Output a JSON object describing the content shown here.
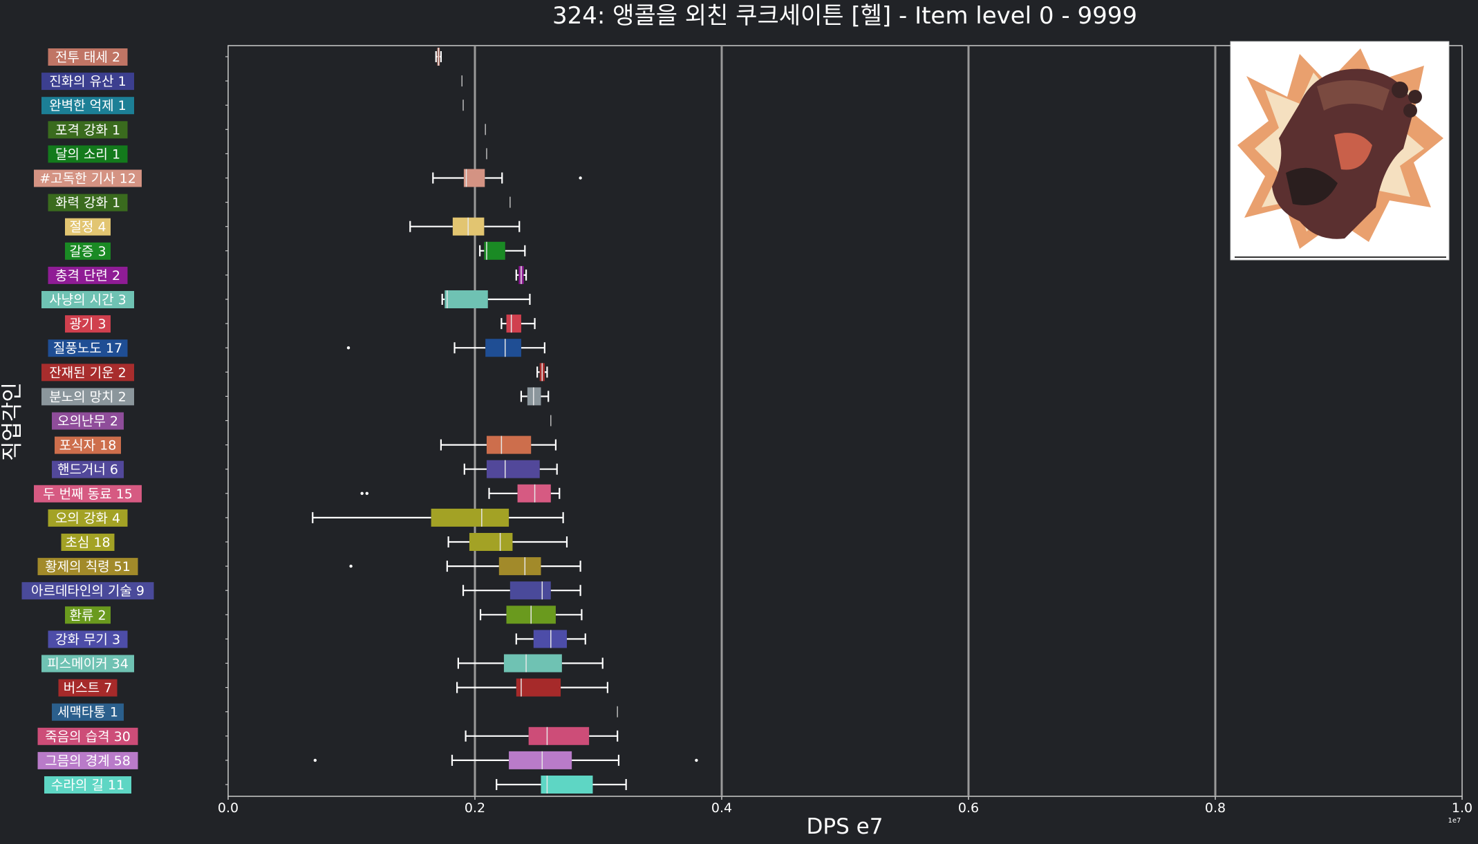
{
  "chart_data": {
    "type": "box",
    "orientation": "horizontal",
    "title": "324: 앵콜을 외친 쿠크세이튼 [헬] - Item level 0 - 9999",
    "xlabel": "DPS e7",
    "ylabel": "직업각인",
    "x_offset_label": "1e7",
    "xlim": [
      0.0,
      1.0
    ],
    "xticks": [
      "0.0",
      "0.2",
      "0.4",
      "0.6",
      "0.8",
      "1.0"
    ],
    "vertical_gridlines_at": [
      0.2,
      0.4,
      0.6,
      0.8
    ],
    "image_inset": "character-portrait",
    "categories": [
      {
        "label": "전투 태세 2",
        "color": "#c07565",
        "whislo": 0.1685,
        "q1": 0.1695,
        "med": 0.1705,
        "q3": 0.1715,
        "whishi": 0.1725,
        "fliers": []
      },
      {
        "label": "진화의 유산 1",
        "color": "#3c3f8f",
        "whislo": 0.1895,
        "q1": 0.1895,
        "med": 0.1895,
        "q3": 0.1895,
        "whishi": 0.1895,
        "fliers": []
      },
      {
        "label": "완벽한 억제 1",
        "color": "#1c7f96",
        "whislo": 0.1905,
        "q1": 0.1905,
        "med": 0.1905,
        "q3": 0.1905,
        "whishi": 0.1905,
        "fliers": []
      },
      {
        "label": "포격 강화 1",
        "color": "#3a6b1e",
        "whislo": 0.2085,
        "q1": 0.2085,
        "med": 0.2085,
        "q3": 0.2085,
        "whishi": 0.2085,
        "fliers": []
      },
      {
        "label": "달의 소리 1",
        "color": "#137a1c",
        "whislo": 0.2095,
        "q1": 0.2095,
        "med": 0.2095,
        "q3": 0.2095,
        "whishi": 0.2095,
        "fliers": []
      },
      {
        "label": "#고독한 기사 12",
        "color": "#d49383",
        "whislo": 0.166,
        "q1": 0.191,
        "med": 0.193,
        "q3": 0.208,
        "whishi": 0.222,
        "fliers": [
          0.2855
        ]
      },
      {
        "label": "화력 강화 1",
        "color": "#3a6b1e",
        "whislo": 0.2285,
        "q1": 0.2285,
        "med": 0.2285,
        "q3": 0.2285,
        "whishi": 0.2285,
        "fliers": []
      },
      {
        "label": "절정 4",
        "color": "#e2c571",
        "whislo": 0.1475,
        "q1": 0.182,
        "med": 0.1945,
        "q3": 0.2075,
        "whishi": 0.236,
        "fliers": []
      },
      {
        "label": "갈증 3",
        "color": "#1a8a24",
        "whislo": 0.204,
        "q1": 0.2075,
        "med": 0.2095,
        "q3": 0.2245,
        "whishi": 0.2405,
        "fliers": []
      },
      {
        "label": "충격 단련 2",
        "color": "#8f1c95",
        "whislo": 0.2335,
        "q1": 0.2355,
        "med": 0.2375,
        "q3": 0.2395,
        "whishi": 0.2415,
        "fliers": []
      },
      {
        "label": "사냥의 시간 3",
        "color": "#6fc2b3",
        "whislo": 0.1735,
        "q1": 0.1755,
        "med": 0.1775,
        "q3": 0.2105,
        "whishi": 0.2445,
        "fliers": []
      },
      {
        "label": "광기 3",
        "color": "#d0404e",
        "whislo": 0.2215,
        "q1": 0.2255,
        "med": 0.2295,
        "q3": 0.2375,
        "whishi": 0.2485,
        "fliers": []
      },
      {
        "label": "질풍노도 17",
        "color": "#1f4e94",
        "whislo": 0.1835,
        "q1": 0.2085,
        "med": 0.2245,
        "q3": 0.2375,
        "whishi": 0.2565,
        "fliers": [
          0.0975
        ]
      },
      {
        "label": "잔재된 기운 2",
        "color": "#a82d2d",
        "whislo": 0.2505,
        "q1": 0.2525,
        "med": 0.2545,
        "q3": 0.2565,
        "whishi": 0.2585,
        "fliers": []
      },
      {
        "label": "분노의 망치 2",
        "color": "#8b969c",
        "whislo": 0.2375,
        "q1": 0.2425,
        "med": 0.2475,
        "q3": 0.2535,
        "whishi": 0.2595,
        "fliers": []
      },
      {
        "label": "오의난무 2",
        "color": "#8f4d9a",
        "whislo": 0.2615,
        "q1": 0.2615,
        "med": 0.2615,
        "q3": 0.2615,
        "whishi": 0.2615,
        "fliers": []
      },
      {
        "label": "포식자 18",
        "color": "#cd6e4c",
        "whislo": 0.1725,
        "q1": 0.2095,
        "med": 0.2215,
        "q3": 0.2455,
        "whishi": 0.2655,
        "fliers": []
      },
      {
        "label": "핸드거너 6",
        "color": "#52489a",
        "whislo": 0.1915,
        "q1": 0.2095,
        "med": 0.2245,
        "q3": 0.2525,
        "whishi": 0.2665,
        "fliers": []
      },
      {
        "label": "두 번째 동료 15",
        "color": "#d65a82",
        "whislo": 0.2115,
        "q1": 0.2345,
        "med": 0.2485,
        "q3": 0.2615,
        "whishi": 0.2685,
        "fliers": [
          0.1085,
          0.1125
        ]
      },
      {
        "label": "오의 강화 4",
        "color": "#a3a225",
        "whislo": 0.0685,
        "q1": 0.1645,
        "med": 0.2055,
        "q3": 0.2275,
        "whishi": 0.2715,
        "fliers": []
      },
      {
        "label": "초심 18",
        "color": "#a3a225",
        "whislo": 0.1785,
        "q1": 0.1955,
        "med": 0.2205,
        "q3": 0.2305,
        "whishi": 0.2745,
        "fliers": []
      },
      {
        "label": "황제의 칙령 51",
        "color": "#a28a2a",
        "whislo": 0.1775,
        "q1": 0.2195,
        "med": 0.2405,
        "q3": 0.2535,
        "whishi": 0.2855,
        "fliers": [
          0.0995
        ]
      },
      {
        "label": "아르데타인의 기술 9",
        "color": "#4a4a9a",
        "whislo": 0.1905,
        "q1": 0.2285,
        "med": 0.2545,
        "q3": 0.2615,
        "whishi": 0.2855,
        "fliers": []
      },
      {
        "label": "환류 2",
        "color": "#6a9a1e",
        "whislo": 0.2045,
        "q1": 0.2255,
        "med": 0.2455,
        "q3": 0.2655,
        "whishi": 0.2865,
        "fliers": []
      },
      {
        "label": "강화 무기 3",
        "color": "#4d4da8",
        "whislo": 0.2335,
        "q1": 0.2475,
        "med": 0.2615,
        "q3": 0.2745,
        "whishi": 0.2895,
        "fliers": []
      },
      {
        "label": "피스메이커 34",
        "color": "#6fc2b3",
        "whislo": 0.1865,
        "q1": 0.2235,
        "med": 0.2415,
        "q3": 0.2705,
        "whishi": 0.3035,
        "fliers": []
      },
      {
        "label": "버스트 7",
        "color": "#a62a2a",
        "whislo": 0.1855,
        "q1": 0.2335,
        "med": 0.2375,
        "q3": 0.2695,
        "whishi": 0.3075,
        "fliers": []
      },
      {
        "label": "세맥타통 1",
        "color": "#2b5f8c",
        "whislo": 0.3155,
        "q1": 0.3155,
        "med": 0.3155,
        "q3": 0.3155,
        "whishi": 0.3155,
        "fliers": []
      },
      {
        "label": "죽음의 습격 30",
        "color": "#cd4d78",
        "whislo": 0.1925,
        "q1": 0.2435,
        "med": 0.2585,
        "q3": 0.2925,
        "whishi": 0.3155,
        "fliers": []
      },
      {
        "label": "그믐의 경계 58",
        "color": "#b97bc9",
        "whislo": 0.1815,
        "q1": 0.2275,
        "med": 0.2545,
        "q3": 0.2785,
        "whishi": 0.3165,
        "fliers": [
          0.0705,
          0.3795
        ]
      },
      {
        "label": "수라의 길 11",
        "color": "#5ed6c4",
        "whislo": 0.2175,
        "q1": 0.2535,
        "med": 0.2585,
        "q3": 0.2955,
        "whishi": 0.3225,
        "fliers": []
      }
    ]
  }
}
